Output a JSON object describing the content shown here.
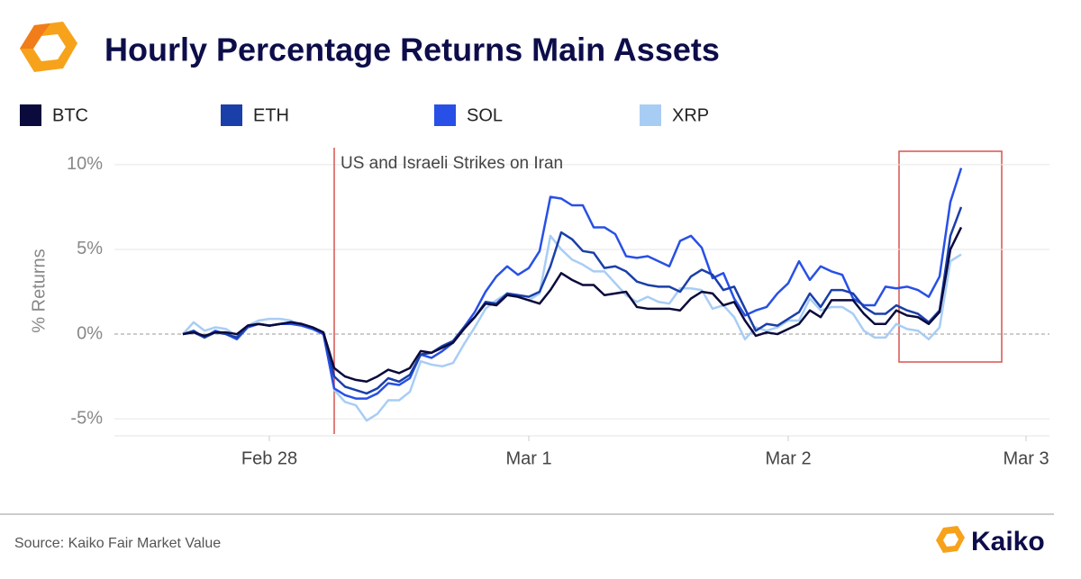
{
  "chart_data": {
    "type": "line",
    "title": "Hourly Percentage Returns Main Assets",
    "ylabel": "% Returns",
    "annotation": "US and Israeli Strikes on Iran",
    "source": "Source: Kaiko Fair Market Value",
    "brand": "Kaiko",
    "categories": [
      null,
      null,
      null,
      null,
      null,
      null,
      null,
      null,
      "Feb 28",
      null,
      null,
      null,
      null,
      null,
      null,
      null,
      null,
      null,
      null,
      null,
      null,
      null,
      null,
      null,
      null,
      null,
      null,
      null,
      null,
      null,
      null,
      null,
      "Mar 1",
      null,
      null,
      null,
      null,
      null,
      null,
      null,
      null,
      null,
      null,
      null,
      null,
      null,
      null,
      null,
      null,
      null,
      null,
      null,
      null,
      null,
      null,
      null,
      "Mar 2",
      null,
      null,
      null,
      null,
      null,
      null,
      null,
      null,
      null,
      null,
      null,
      null,
      null,
      null,
      null,
      null,
      null,
      null,
      null,
      null,
      null,
      "Mar 3"
    ],
    "ylim": [
      -6,
      11
    ],
    "yticks": [
      {
        "value": -5,
        "label": "-5%"
      },
      {
        "value": 0,
        "label": "0%"
      },
      {
        "value": 5,
        "label": "5%"
      },
      {
        "value": 10,
        "label": "10%"
      }
    ],
    "grid": true,
    "series": [
      {
        "name": "BTC",
        "color": "#0a0a3c",
        "values": [
          0,
          0.1,
          -0.1,
          0.1,
          0.1,
          0,
          0.5,
          0.6,
          0.5,
          0.6,
          0.7,
          0.6,
          0.4,
          0.1,
          -2.0,
          -2.5,
          -2.7,
          -2.8,
          -2.5,
          -2.1,
          -2.3,
          -2.0,
          -1.0,
          -1.1,
          -0.8,
          -0.5,
          0.3,
          1.0,
          1.8,
          1.7,
          2.3,
          2.2,
          2.0,
          1.8,
          2.6,
          3.6,
          3.2,
          2.9,
          2.9,
          2.3,
          2.4,
          2.5,
          1.6,
          1.5,
          1.5,
          1.5,
          1.4,
          2.1,
          2.5,
          2.4,
          1.7,
          1.9,
          0.8,
          -0.1,
          0.1,
          0.0,
          0.3,
          0.6,
          1.4,
          1.0,
          2.0,
          2.0,
          2.0,
          1.2,
          0.6,
          0.6,
          1.4,
          1.1,
          1.0,
          0.6,
          1.3,
          5.0,
          6.3,
          null,
          null,
          null,
          null,
          null,
          null
        ]
      },
      {
        "name": "ETH",
        "color": "#1a3fa8",
        "values": [
          0,
          0.2,
          -0.2,
          0.1,
          0,
          -0.2,
          0.5,
          0.6,
          0.5,
          0.6,
          0.7,
          0.6,
          0.4,
          0.1,
          -2.5,
          -3.1,
          -3.3,
          -3.5,
          -3.2,
          -2.6,
          -2.8,
          -2.4,
          -1.2,
          -1.1,
          -0.7,
          -0.4,
          0.4,
          1.0,
          1.9,
          1.8,
          2.4,
          2.3,
          2.2,
          2.5,
          4.0,
          6.0,
          5.6,
          4.9,
          4.8,
          3.9,
          4.0,
          3.7,
          3.1,
          2.9,
          2.8,
          2.8,
          2.5,
          3.4,
          3.8,
          3.5,
          2.6,
          2.8,
          1.5,
          0.2,
          0.6,
          0.5,
          0.9,
          1.3,
          2.4,
          1.6,
          2.6,
          2.6,
          2.4,
          1.6,
          1.2,
          1.2,
          1.7,
          1.4,
          1.2,
          0.7,
          1.4,
          5.8,
          7.5,
          null,
          null,
          null,
          null,
          null,
          null
        ]
      },
      {
        "name": "SOL",
        "color": "#2850e6",
        "values": [
          0,
          0.1,
          -0.2,
          0.2,
          0,
          -0.3,
          0.4,
          0.6,
          0.5,
          0.6,
          0.6,
          0.5,
          0.3,
          0,
          -3.2,
          -3.6,
          -3.8,
          -3.8,
          -3.5,
          -2.9,
          -3.0,
          -2.6,
          -1.2,
          -1.4,
          -1.0,
          -0.5,
          0.4,
          1.3,
          2.5,
          3.4,
          4.0,
          3.5,
          3.9,
          4.9,
          8.1,
          8.0,
          7.6,
          7.6,
          6.3,
          6.3,
          5.9,
          4.6,
          4.5,
          4.6,
          4.3,
          4.0,
          5.5,
          5.8,
          5.1,
          3.3,
          3.6,
          2.1,
          1.1,
          1.4,
          1.6,
          2.4,
          3.0,
          4.3,
          3.2,
          4.0,
          3.7,
          3.5,
          2.1,
          1.7,
          1.7,
          2.8,
          2.7,
          2.8,
          2.6,
          2.2,
          3.4,
          7.8,
          9.8,
          null,
          null,
          null,
          null,
          null,
          null
        ]
      },
      {
        "name": "XRP",
        "color": "#a8cdf5",
        "values": [
          0,
          0.7,
          0.2,
          0.4,
          0.3,
          -0.1,
          0.5,
          0.8,
          0.9,
          0.9,
          0.8,
          0.5,
          0.3,
          0.1,
          -3.3,
          -4.0,
          -4.2,
          -5.1,
          -4.7,
          -3.9,
          -3.9,
          -3.4,
          -1.6,
          -1.8,
          -1.9,
          -1.7,
          -0.6,
          0.4,
          1.5,
          2.0,
          2.4,
          2.2,
          2.0,
          2.4,
          5.8,
          5.0,
          4.4,
          4.1,
          3.7,
          3.7,
          3.0,
          2.3,
          1.9,
          2.2,
          1.9,
          1.8,
          2.7,
          2.7,
          2.6,
          1.5,
          1.7,
          1.0,
          -0.3,
          0.4,
          0.2,
          0.4,
          0.8,
          0.8,
          2.1,
          1.4,
          1.6,
          1.6,
          1.2,
          0.2,
          -0.2,
          -0.2,
          0.6,
          0.3,
          0.2,
          -0.3,
          0.4,
          4.3,
          4.7,
          null,
          null,
          null,
          null,
          null,
          null
        ]
      }
    ]
  }
}
